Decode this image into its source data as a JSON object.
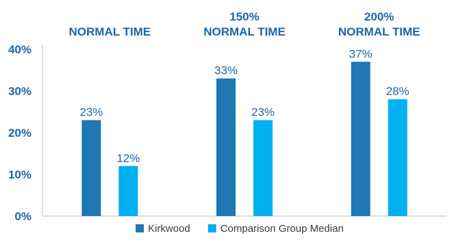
{
  "chart_data": {
    "type": "bar",
    "categories": [
      [
        "NORMAL TIME"
      ],
      [
        "150%",
        "NORMAL TIME"
      ],
      [
        "200%",
        "NORMAL TIME"
      ]
    ],
    "series": [
      {
        "name": "Kirkwood",
        "values": [
          23,
          33,
          37
        ],
        "labels": [
          "23%",
          "33%",
          "37%"
        ],
        "color": "#1f77b4"
      },
      {
        "name": "Comparison Group Median",
        "values": [
          12,
          23,
          28
        ],
        "labels": [
          "12%",
          "23%",
          "28%"
        ],
        "color": "#00b0f0"
      }
    ],
    "yticks": [
      "0%",
      "10%",
      "20%",
      "30%",
      "40%"
    ],
    "ylim": [
      0,
      40
    ],
    "grid": false,
    "legend": "bottom",
    "category_label_position": "top",
    "axis_color": "#1a66a8",
    "baseline_color": "#bfbfbf"
  }
}
